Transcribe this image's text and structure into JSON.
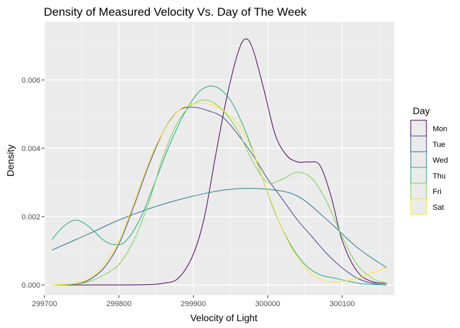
{
  "chart_data": {
    "type": "line",
    "subtype": "density",
    "title": "Density of Measured Velocity Vs. Day of The Week",
    "xlabel": "Velocity of Light",
    "ylabel": "Density",
    "xlim": [
      299700,
      300170
    ],
    "ylim": [
      -0.0003,
      0.0077
    ],
    "xticks": [
      299700,
      299800,
      299900,
      300000,
      300100
    ],
    "xtick_labels": [
      "299700",
      "299800",
      "299900",
      "300000",
      "300100"
    ],
    "yticks": [
      0.0,
      0.002,
      0.004,
      0.006
    ],
    "ytick_labels": [
      "0.000",
      "0.002",
      "0.004",
      "0.006"
    ],
    "grid": true,
    "background": "#ebebeb",
    "legend": {
      "title": "Day",
      "position": "right"
    },
    "series": [
      {
        "name": "Mon",
        "color": "#440154",
        "points": [
          [
            299710,
            0.0
          ],
          [
            299760,
            0.0
          ],
          [
            299800,
            0.0
          ],
          [
            299840,
            1e-05
          ],
          [
            299860,
            5e-05
          ],
          [
            299880,
            0.0002
          ],
          [
            299900,
            0.0009
          ],
          [
            299915,
            0.002
          ],
          [
            299930,
            0.0038
          ],
          [
            299945,
            0.0055
          ],
          [
            299960,
            0.0068
          ],
          [
            299970,
            0.0072
          ],
          [
            299980,
            0.0069
          ],
          [
            299995,
            0.0057
          ],
          [
            300010,
            0.0044
          ],
          [
            300025,
            0.0038
          ],
          [
            300040,
            0.0036
          ],
          [
            300055,
            0.0036
          ],
          [
            300070,
            0.0035
          ],
          [
            300085,
            0.0026
          ],
          [
            300100,
            0.0013
          ],
          [
            300120,
            0.0004
          ],
          [
            300140,
            0.0001
          ],
          [
            300160,
            5e-05
          ]
        ]
      },
      {
        "name": "Tue",
        "color": "#414487",
        "points": [
          [
            299710,
            0.0
          ],
          [
            299740,
            2e-05
          ],
          [
            299760,
            0.00015
          ],
          [
            299780,
            0.0005
          ],
          [
            299800,
            0.0012
          ],
          [
            299820,
            0.0023
          ],
          [
            299840,
            0.0035
          ],
          [
            299860,
            0.0045
          ],
          [
            299880,
            0.0051
          ],
          [
            299900,
            0.0052
          ],
          [
            299920,
            0.0051
          ],
          [
            299940,
            0.0049
          ],
          [
            299960,
            0.0044
          ],
          [
            299980,
            0.0038
          ],
          [
            300000,
            0.0031
          ],
          [
            300020,
            0.0025
          ],
          [
            300040,
            0.0019
          ],
          [
            300060,
            0.0014
          ],
          [
            300080,
            0.0009
          ],
          [
            300100,
            0.0005
          ],
          [
            300120,
            0.0002
          ],
          [
            300140,
            5e-05
          ],
          [
            300160,
            0.0
          ]
        ]
      },
      {
        "name": "Wed",
        "color": "#2a788e",
        "points": [
          [
            299710,
            0.00102
          ],
          [
            299760,
            0.0015
          ],
          [
            299800,
            0.0019
          ],
          [
            299850,
            0.0023
          ],
          [
            299900,
            0.0026
          ],
          [
            299950,
            0.0028
          ],
          [
            300000,
            0.0028
          ],
          [
            300040,
            0.0026
          ],
          [
            300080,
            0.0019
          ],
          [
            300120,
            0.0011
          ],
          [
            300160,
            0.0005
          ]
        ]
      },
      {
        "name": "Thu",
        "color": "#22a884",
        "points": [
          [
            299710,
            0.00133
          ],
          [
            299725,
            0.0017
          ],
          [
            299742,
            0.0019
          ],
          [
            299760,
            0.0017
          ],
          [
            299780,
            0.0013
          ],
          [
            299795,
            0.00118
          ],
          [
            299810,
            0.0013
          ],
          [
            299830,
            0.002
          ],
          [
            299850,
            0.0031
          ],
          [
            299870,
            0.0042
          ],
          [
            299890,
            0.0051
          ],
          [
            299910,
            0.0057
          ],
          [
            299930,
            0.0058
          ],
          [
            299950,
            0.0054
          ],
          [
            299970,
            0.0045
          ],
          [
            299990,
            0.0033
          ],
          [
            300010,
            0.0021
          ],
          [
            300030,
            0.0012
          ],
          [
            300050,
            0.0006
          ],
          [
            300070,
            0.0003
          ],
          [
            300090,
            0.0002
          ],
          [
            300110,
            0.0001
          ],
          [
            300130,
            3e-05
          ],
          [
            300160,
            0.0
          ]
        ]
      },
      {
        "name": "Fri",
        "color": "#7ad151",
        "points": [
          [
            299710,
            0.0
          ],
          [
            299740,
            2e-05
          ],
          [
            299760,
            0.0001
          ],
          [
            299780,
            0.0003
          ],
          [
            299800,
            0.0006
          ],
          [
            299820,
            0.0013
          ],
          [
            299840,
            0.0024
          ],
          [
            299860,
            0.0038
          ],
          [
            299880,
            0.0048
          ],
          [
            299900,
            0.0053
          ],
          [
            299920,
            0.0054
          ],
          [
            299940,
            0.0051
          ],
          [
            299960,
            0.0045
          ],
          [
            299980,
            0.0036
          ],
          [
            300000,
            0.003
          ],
          [
            300020,
            0.0031
          ],
          [
            300040,
            0.0033
          ],
          [
            300060,
            0.0031
          ],
          [
            300080,
            0.0024
          ],
          [
            300100,
            0.0014
          ],
          [
            300120,
            0.0006
          ],
          [
            300140,
            0.0002
          ],
          [
            300160,
            5e-05
          ]
        ]
      },
      {
        "name": "Sat",
        "color": "#fde725",
        "points": [
          [
            299710,
            0.0
          ],
          [
            299740,
            5e-05
          ],
          [
            299760,
            0.0002
          ],
          [
            299780,
            0.0006
          ],
          [
            299800,
            0.0013
          ],
          [
            299820,
            0.0024
          ],
          [
            299840,
            0.0036
          ],
          [
            299860,
            0.0045
          ],
          [
            299880,
            0.0051
          ],
          [
            299900,
            0.0053
          ],
          [
            299920,
            0.0053
          ],
          [
            299940,
            0.0051
          ],
          [
            299960,
            0.0047
          ],
          [
            299980,
            0.0039
          ],
          [
            300000,
            0.0027
          ],
          [
            300020,
            0.0016
          ],
          [
            300040,
            0.0008
          ],
          [
            300060,
            0.0003
          ],
          [
            300080,
            0.0001
          ],
          [
            300100,
            0.0001
          ],
          [
            300120,
            0.0002
          ],
          [
            300140,
            0.00035
          ],
          [
            300160,
            0.0005
          ]
        ]
      }
    ]
  }
}
